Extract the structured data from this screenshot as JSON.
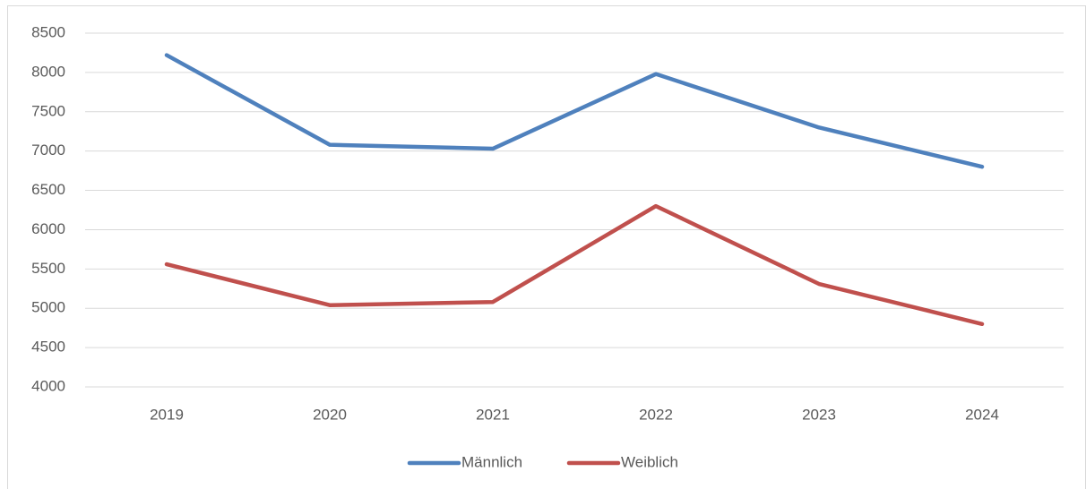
{
  "chart_data": {
    "type": "line",
    "categories": [
      "2019",
      "2020",
      "2021",
      "2022",
      "2023",
      "2024"
    ],
    "series": [
      {
        "name": "Männlich",
        "color": "#4f81bd",
        "values": [
          8220,
          7080,
          7030,
          7980,
          7300,
          6800
        ]
      },
      {
        "name": "Weiblich",
        "color": "#c0504d",
        "values": [
          5560,
          5040,
          5080,
          6300,
          5310,
          4800
        ]
      }
    ],
    "ylim": [
      4000,
      8500
    ],
    "yticks": [
      4000,
      4500,
      5000,
      5500,
      6000,
      6500,
      7000,
      7500,
      8000,
      8500
    ],
    "grid": true,
    "legend": "bottom"
  }
}
